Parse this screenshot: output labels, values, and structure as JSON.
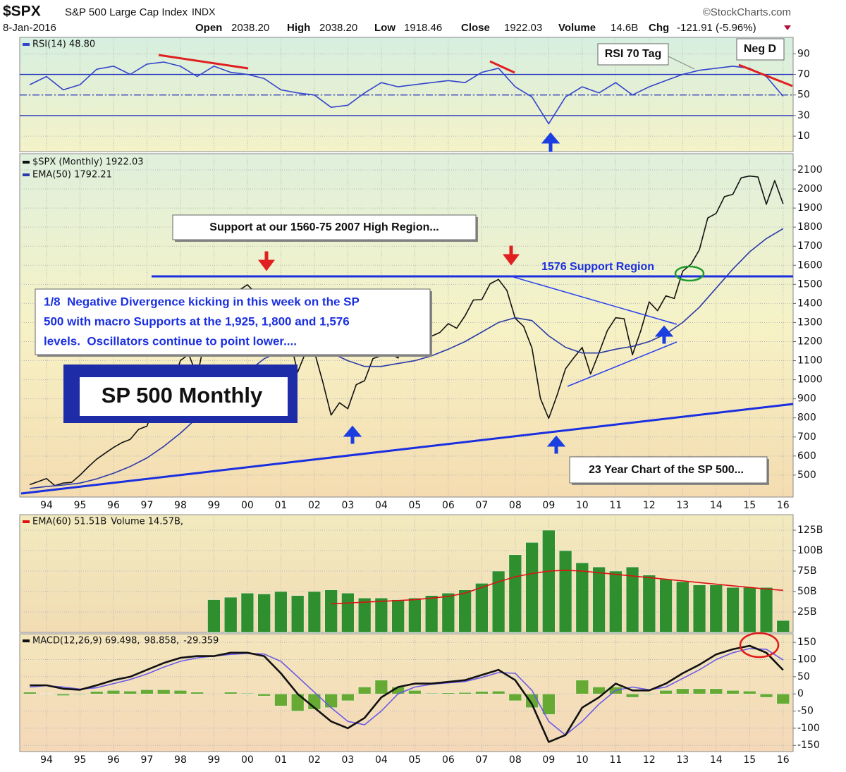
{
  "header": {
    "symbol": "$SPX",
    "name": "S&P 500 Large Cap Index",
    "exchange": "INDX",
    "source": "©StockCharts.com",
    "date": "8-Jan-2016",
    "open_label": "Open",
    "open": "2038.20",
    "high_label": "High",
    "high": "2038.20",
    "low_label": "Low",
    "low": "1918.46",
    "close_label": "Close",
    "close": "1922.03",
    "volume_label": "Volume",
    "volume": "14.6B",
    "chg_label": "Chg",
    "chg": "-121.91 (-5.96%)"
  },
  "chart_data": [
    {
      "type": "line",
      "legend": "inline",
      "xlim": [
        1993.2,
        2016.3
      ],
      "ylim": [
        -5,
        106
      ],
      "yticks": [
        10,
        30,
        50,
        70,
        90
      ],
      "grid": true,
      "reference_lines": [
        {
          "value": 70,
          "style": "solid"
        },
        {
          "value": 50,
          "style": "dashdot"
        },
        {
          "value": 30,
          "style": "solid"
        }
      ],
      "x": [
        1993.5,
        1994,
        1994.5,
        1995,
        1995.5,
        1996,
        1996.5,
        1997,
        1997.5,
        1998,
        1998.5,
        1999,
        1999.5,
        2000,
        2000.5,
        2001,
        2001.5,
        2002,
        2002.5,
        2003,
        2003.5,
        2004,
        2004.5,
        2005,
        2005.5,
        2006,
        2006.5,
        2007,
        2007.5,
        2008,
        2008.5,
        2009,
        2009.5,
        2010,
        2010.5,
        2011,
        2011.5,
        2012,
        2012.5,
        2013,
        2013.5,
        2014,
        2014.5,
        2015,
        2015.5,
        2016
      ],
      "series": [
        {
          "name": "RSI(14) 48.80",
          "color": "#3344cc",
          "values": [
            60,
            68,
            55,
            60,
            75,
            78,
            70,
            80,
            82,
            78,
            68,
            78,
            72,
            70,
            66,
            55,
            52,
            50,
            38,
            40,
            52,
            62,
            58,
            60,
            62,
            64,
            62,
            72,
            76,
            58,
            48,
            22,
            48,
            58,
            52,
            62,
            50,
            58,
            64,
            70,
            74,
            76,
            78,
            76,
            68,
            48.8
          ]
        }
      ],
      "annotations": {
        "rsi_tag": "RSI 70 Tag",
        "neg_d": "Neg D"
      }
    },
    {
      "type": "line",
      "legend": "stacked",
      "xlim": [
        1993.2,
        2016.3
      ],
      "ylim": [
        385,
        2185
      ],
      "yticks": [
        500,
        600,
        700,
        800,
        900,
        1000,
        1100,
        1200,
        1300,
        1400,
        1500,
        1600,
        1700,
        1800,
        1900,
        2000,
        2100
      ],
      "grid": true,
      "xticks": [
        {
          "value": 1994,
          "label": "94"
        },
        {
          "value": 1995,
          "label": "95"
        },
        {
          "value": 1996,
          "label": "96"
        },
        {
          "value": 1997,
          "label": "97"
        },
        {
          "value": 1998,
          "label": "98"
        },
        {
          "value": 1999,
          "label": "99"
        },
        {
          "value": 2000,
          "label": "00"
        },
        {
          "value": 2001,
          "label": "01"
        },
        {
          "value": 2002,
          "label": "02"
        },
        {
          "value": 2003,
          "label": "03"
        },
        {
          "value": 2004,
          "label": "04"
        },
        {
          "value": 2005,
          "label": "05"
        },
        {
          "value": 2006,
          "label": "06"
        },
        {
          "value": 2007,
          "label": "07"
        },
        {
          "value": 2008,
          "label": "08"
        },
        {
          "value": 2009,
          "label": "09"
        },
        {
          "value": 2010,
          "label": "10"
        },
        {
          "value": 2011,
          "label": "11"
        },
        {
          "value": 2012,
          "label": "12"
        },
        {
          "value": 2013,
          "label": "13"
        },
        {
          "value": 2014,
          "label": "14"
        },
        {
          "value": 2015,
          "label": "15"
        },
        {
          "value": 2016,
          "label": "16"
        }
      ],
      "x": [
        1993.5,
        1993.75,
        1994,
        1994.25,
        1994.5,
        1994.75,
        1995,
        1995.25,
        1995.5,
        1995.75,
        1996,
        1996.25,
        1996.5,
        1996.75,
        1997,
        1997.25,
        1997.5,
        1997.75,
        1998,
        1998.25,
        1998.5,
        1998.75,
        1999,
        1999.25,
        1999.5,
        1999.75,
        2000,
        2000.25,
        2000.5,
        2000.75,
        2001,
        2001.25,
        2001.5,
        2001.75,
        2002,
        2002.25,
        2002.5,
        2002.75,
        2003,
        2003.25,
        2003.5,
        2003.75,
        2004,
        2004.25,
        2004.5,
        2004.75,
        2005,
        2005.25,
        2005.5,
        2005.75,
        2006,
        2006.25,
        2006.5,
        2006.75,
        2007,
        2007.25,
        2007.5,
        2007.75,
        2008,
        2008.25,
        2008.5,
        2008.75,
        2009,
        2009.25,
        2009.5,
        2009.75,
        2010,
        2010.25,
        2010.5,
        2010.75,
        2011,
        2011.25,
        2011.5,
        2011.75,
        2012,
        2012.25,
        2012.5,
        2012.75,
        2013,
        2013.25,
        2013.5,
        2013.75,
        2014,
        2014.25,
        2014.5,
        2014.75,
        2015,
        2015.25,
        2015.5,
        2015.75,
        2016
      ],
      "series": [
        {
          "name": "$SPX (Monthly) 1922.03",
          "color": "#111111",
          "values": [
            450,
            466,
            482,
            445,
            458,
            462,
            500,
            544,
            584,
            615,
            645,
            670,
            687,
            740,
            757,
            885,
            947,
            970,
            1101,
            1133,
            1017,
            1229,
            1286,
            1372,
            1282,
            1469,
            1498,
            1454,
            1436,
            1320,
            1160,
            1224,
            1040,
            1148,
            1147,
            989,
            815,
            879,
            848,
            974,
            995,
            1111,
            1126,
            1140,
            1114,
            1211,
            1180,
            1191,
            1228,
            1248,
            1294,
            1270,
            1335,
            1418,
            1420,
            1503,
            1526,
            1468,
            1322,
            1280,
            1166,
            903,
            797,
            919,
            1057,
            1115,
            1169,
            1030,
            1141,
            1257,
            1325,
            1320,
            1131,
            1257,
            1408,
            1362,
            1440,
            1426,
            1569,
            1606,
            1681,
            1848,
            1872,
            1960,
            1972,
            2059,
            2068,
            2063,
            1920,
            2044,
            1922.03
          ]
        },
        {
          "name": "EMA(50) 1792.21",
          "color": "#2a3aa8",
          "x": [
            1993.5,
            1994,
            1994.5,
            1995,
            1995.5,
            1996,
            1996.5,
            1997,
            1997.5,
            1998,
            1998.5,
            1999,
            1999.5,
            2000,
            2000.5,
            2001,
            2001.5,
            2002,
            2002.5,
            2003,
            2003.5,
            2004,
            2004.5,
            2005,
            2005.5,
            2006,
            2006.5,
            2007,
            2007.5,
            2008,
            2008.5,
            2009,
            2009.5,
            2010,
            2010.5,
            2011,
            2011.5,
            2012,
            2012.5,
            2013,
            2013.5,
            2014,
            2014.5,
            2015,
            2015.5,
            2016
          ],
          "values": [
            430,
            440,
            448,
            458,
            480,
            510,
            545,
            590,
            650,
            720,
            800,
            880,
            960,
            1040,
            1110,
            1150,
            1165,
            1165,
            1140,
            1100,
            1070,
            1070,
            1085,
            1100,
            1125,
            1160,
            1200,
            1250,
            1300,
            1325,
            1310,
            1230,
            1170,
            1140,
            1140,
            1160,
            1175,
            1200,
            1240,
            1300,
            1380,
            1480,
            1580,
            1670,
            1740,
            1792.21
          ]
        }
      ],
      "annotations": {
        "support_note": "Support at our 1560-75 2007 High Region...",
        "support_region": "1576 Support Region",
        "divergence_note": [
          "1/8  Negative Divergence kicking in this week on the SP",
          "500 with macro Supports at the 1,925, 1,800 and 1,576",
          "levels.  Oscillators continue to point lower...."
        ],
        "chart_label": "SP 500 Monthly",
        "span_note": "23 Year Chart of the SP 500..."
      }
    },
    {
      "type": "bar",
      "legend": "inline",
      "xlim": [
        1993.2,
        2016.3
      ],
      "ylim": [
        0,
        144
      ],
      "yticks": [
        {
          "value": 25,
          "label": "25B"
        },
        {
          "value": 50,
          "label": "50B"
        },
        {
          "value": 75,
          "label": "75B"
        },
        {
          "value": 100,
          "label": "100B"
        },
        {
          "value": 125,
          "label": "125B"
        }
      ],
      "grid": true,
      "x": [
        1999,
        1999.5,
        2000,
        2000.5,
        2001,
        2001.5,
        2002,
        2002.5,
        2003,
        2003.5,
        2004,
        2004.5,
        2005,
        2005.5,
        2006,
        2006.5,
        2007,
        2007.5,
        2008,
        2008.5,
        2009,
        2009.5,
        2010,
        2010.5,
        2011,
        2011.5,
        2012,
        2012.5,
        2013,
        2013.5,
        2014,
        2014.5,
        2015,
        2015.5,
        2016
      ],
      "series": [
        {
          "name": "Volume 14.57B,",
          "color": "#2f8f2f",
          "type": "bar",
          "values": [
            40,
            43,
            48,
            47,
            50,
            45,
            50,
            52,
            48,
            42,
            42,
            40,
            42,
            45,
            48,
            52,
            60,
            75,
            95,
            110,
            125,
            100,
            85,
            80,
            75,
            80,
            70,
            65,
            62,
            58,
            58,
            55,
            55,
            55,
            14.57
          ]
        },
        {
          "name": "EMA(60) 51.51B",
          "color": "#dd1111",
          "type": "line",
          "x": [
            2002.5,
            2003,
            2003.5,
            2004,
            2004.5,
            2005,
            2005.5,
            2006,
            2006.5,
            2007,
            2007.5,
            2008,
            2008.5,
            2009,
            2009.5,
            2010,
            2010.5,
            2011,
            2011.5,
            2012,
            2012.5,
            2013,
            2013.5,
            2014,
            2014.5,
            2015,
            2015.5,
            2016
          ],
          "values": [
            35,
            36,
            37,
            38,
            39,
            40,
            42,
            44,
            48,
            55,
            62,
            68,
            72,
            75,
            76,
            75,
            73,
            71,
            69,
            67,
            65,
            63,
            61,
            59,
            57,
            55,
            53,
            51.51
          ]
        }
      ]
    },
    {
      "type": "line",
      "legend": "inline",
      "xlim": [
        1993.2,
        2016.3
      ],
      "ylim": [
        -168,
        175
      ],
      "yticks": [
        -150,
        -100,
        -50,
        0,
        50,
        100,
        150
      ],
      "grid": true,
      "xticks": [
        {
          "value": 1994,
          "label": "94"
        },
        {
          "value": 1995,
          "label": "95"
        },
        {
          "value": 1996,
          "label": "96"
        },
        {
          "value": 1997,
          "label": "97"
        },
        {
          "value": 1998,
          "label": "98"
        },
        {
          "value": 1999,
          "label": "99"
        },
        {
          "value": 2000,
          "label": "00"
        },
        {
          "value": 2001,
          "label": "01"
        },
        {
          "value": 2002,
          "label": "02"
        },
        {
          "value": 2003,
          "label": "03"
        },
        {
          "value": 2004,
          "label": "04"
        },
        {
          "value": 2005,
          "label": "05"
        },
        {
          "value": 2006,
          "label": "06"
        },
        {
          "value": 2007,
          "label": "07"
        },
        {
          "value": 2008,
          "label": "08"
        },
        {
          "value": 2009,
          "label": "09"
        },
        {
          "value": 2010,
          "label": "10"
        },
        {
          "value": 2011,
          "label": "11"
        },
        {
          "value": 2012,
          "label": "12"
        },
        {
          "value": 2013,
          "label": "13"
        },
        {
          "value": 2014,
          "label": "14"
        },
        {
          "value": 2015,
          "label": "15"
        },
        {
          "value": 2016,
          "label": "16"
        }
      ],
      "x": [
        1993.5,
        1994,
        1994.5,
        1995,
        1995.5,
        1996,
        1996.5,
        1997,
        1997.5,
        1998,
        1998.5,
        1999,
        1999.5,
        2000,
        2000.5,
        2001,
        2001.5,
        2002,
        2002.5,
        2003,
        2003.5,
        2004,
        2004.5,
        2005,
        2005.5,
        2006,
        2006.5,
        2007,
        2007.5,
        2008,
        2008.5,
        2009,
        2009.5,
        2010,
        2010.5,
        2011,
        2011.5,
        2012,
        2012.5,
        2013,
        2013.5,
        2014,
        2014.5,
        2015,
        2015.5,
        2016
      ],
      "series": [
        {
          "name": "-29.359",
          "color": "#66aa33",
          "type": "bar",
          "values": [
            5,
            1,
            -5,
            -2,
            7,
            10,
            8,
            12,
            12,
            10,
            5,
            0,
            5,
            2,
            -6,
            -35,
            -50,
            -45,
            -40,
            -20,
            20,
            40,
            20,
            10,
            2,
            3,
            4,
            7,
            8,
            -20,
            -40,
            -60,
            0,
            40,
            20,
            20,
            -10,
            -2,
            10,
            15,
            15,
            15,
            10,
            8,
            -10,
            -29.359
          ]
        },
        {
          "name": "98.858,",
          "color": "#6a5ae8",
          "values": [
            20,
            24,
            20,
            14,
            18,
            30,
            42,
            58,
            78,
            95,
            105,
            110,
            115,
            118,
            116,
            95,
            50,
            5,
            -40,
            -80,
            -90,
            -50,
            0,
            20,
            28,
            32,
            36,
            48,
            62,
            60,
            10,
            -80,
            -120,
            -80,
            -30,
            10,
            20,
            12,
            20,
            45,
            70,
            100,
            120,
            132,
            130,
            98.858
          ]
        },
        {
          "name": "MACD(12,26,9) 69.498,",
          "color": "#111111",
          "values": [
            25,
            25,
            15,
            12,
            25,
            40,
            50,
            70,
            90,
            105,
            110,
            110,
            120,
            120,
            110,
            60,
            0,
            -40,
            -80,
            -100,
            -70,
            -10,
            20,
            30,
            30,
            35,
            40,
            55,
            70,
            40,
            -30,
            -140,
            -120,
            -40,
            -10,
            30,
            10,
            10,
            30,
            60,
            85,
            115,
            130,
            140,
            120,
            69.498
          ]
        }
      ]
    }
  ]
}
